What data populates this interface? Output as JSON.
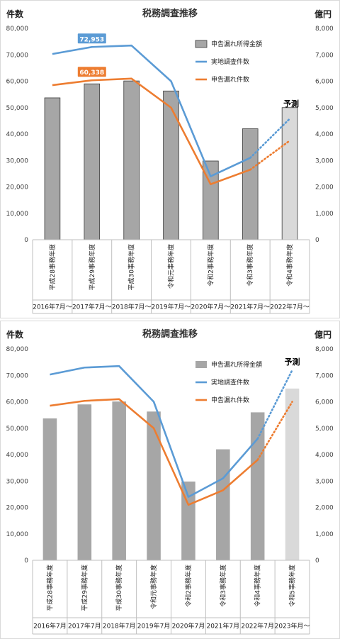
{
  "charts": [
    {
      "type": "bar",
      "title": "税務調査推移",
      "y_left_unit": "件数",
      "y_right_unit": "億円",
      "forecast_label": "予測",
      "categories": [
        "平成28事務年度",
        "平成29事務年度",
        "平成30事務年度",
        "令和元事務年度",
        "令和2事務年度",
        "令和3事務年度",
        "令和4事務年度"
      ],
      "periods": [
        "2016年7月～",
        "2017年7月～",
        "2018年7月～",
        "2019年7月～",
        "2020年7月～",
        "2021年7月～",
        "2022年7月～"
      ],
      "ylim_left": [
        0,
        80000
      ],
      "ylim_right": [
        0,
        8000
      ],
      "left_ticks": [
        "0",
        "10,000",
        "20,000",
        "30,000",
        "40,000",
        "50,000",
        "60,000",
        "70,000",
        "80,000"
      ],
      "right_ticks": [
        "0",
        "1,000",
        "2,000",
        "3,000",
        "4,000",
        "5,000",
        "6,000",
        "7,000",
        "8,000"
      ],
      "bar_series": {
        "name": "申告漏れ所得金額",
        "axis": "right",
        "values": [
          5370,
          5900,
          6010,
          5630,
          2980,
          4200,
          5000
        ],
        "forecast_index": 6,
        "color": "#a6a6a6",
        "forecast_color": "#d9d9d9"
      },
      "line_series": [
        {
          "name": "実地調査件数",
          "axis": "left",
          "color": "#5b9bd5",
          "values": [
            70300,
            72953,
            73500,
            60000,
            24000,
            31000,
            45800
          ],
          "forecast_from": 5,
          "labels": [
            {
              "index": 1,
              "text": "72,953"
            }
          ]
        },
        {
          "name": "申告漏れ件数",
          "axis": "left",
          "color": "#ed7d31",
          "values": [
            58500,
            60338,
            61000,
            50000,
            21000,
            26500,
            37500
          ],
          "forecast_from": 5,
          "labels": [
            {
              "index": 1,
              "text": "60,338"
            }
          ]
        }
      ],
      "legend": [
        "申告漏れ所得金額",
        "実地調査件数",
        "申告漏れ件数"
      ],
      "legend_position": "top-right",
      "grid": false
    },
    {
      "type": "bar",
      "title": "税務調査推移",
      "y_left_unit": "件数",
      "y_right_unit": "億円",
      "forecast_label": "予測",
      "categories": [
        "平成28事務年度",
        "平成29事務年度",
        "平成30事務年度",
        "令和元事務年度",
        "令和2事務年度",
        "令和3事務年度",
        "令和4事務年度",
        "令和5事務年度"
      ],
      "periods": [
        "2016年7月",
        "2017年7月",
        "2018年7月",
        "2019年7月",
        "2020年7月",
        "2021年7月",
        "2022年7月",
        "2023年月～"
      ],
      "ylim_left": [
        0,
        80000
      ],
      "ylim_right": [
        0,
        8000
      ],
      "left_ticks": [
        "0",
        "10,000",
        "20,000",
        "30,000",
        "40,000",
        "50,000",
        "60,000",
        "70,000",
        "80,000"
      ],
      "right_ticks": [
        "0",
        "1,000",
        "2,000",
        "3,000",
        "4,000",
        "5,000",
        "6,000",
        "7,000",
        "8,000"
      ],
      "bar_series": {
        "name": "申告漏れ所得金額",
        "axis": "right",
        "values": [
          5370,
          5900,
          6010,
          5630,
          2980,
          4200,
          5600,
          6500
        ],
        "forecast_index": 7,
        "color": "#a6a6a6",
        "forecast_color": "#d9d9d9"
      },
      "line_series": [
        {
          "name": "実地調査件数",
          "axis": "left",
          "color": "#5b9bd5",
          "values": [
            70300,
            72953,
            73500,
            60000,
            24000,
            31000,
            46000,
            72000
          ],
          "forecast_from": 6,
          "labels": []
        },
        {
          "name": "申告漏れ件数",
          "axis": "left",
          "color": "#ed7d31",
          "values": [
            58500,
            60338,
            61000,
            50000,
            21000,
            26500,
            38000,
            60000
          ],
          "forecast_from": 6,
          "labels": []
        }
      ],
      "legend": [
        "申告漏れ所得金額",
        "実地調査件数",
        "申告漏れ件数"
      ],
      "legend_position": "top-right",
      "grid": false
    }
  ]
}
